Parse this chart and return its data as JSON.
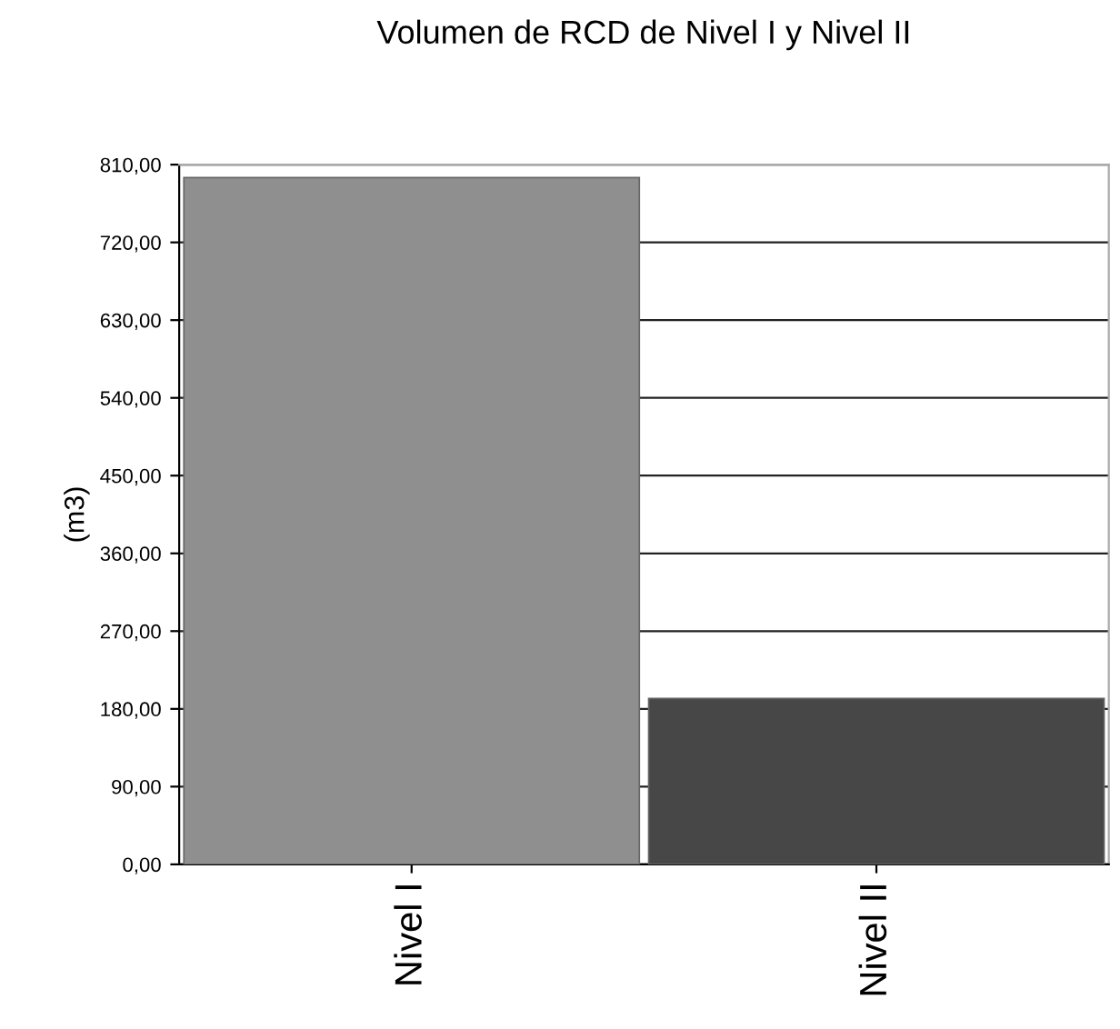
{
  "chart_data": {
    "type": "bar",
    "title": "Volumen de RCD de Nivel I y Nivel II",
    "ylabel": "(m3)",
    "categories": [
      "Nivel I",
      "Nivel II"
    ],
    "values": [
      795,
      192
    ],
    "colors": [
      "#8f8f8f",
      "#474747"
    ],
    "ylim": [
      0,
      810
    ],
    "yticks": [
      {
        "value": 0,
        "label": "0,00"
      },
      {
        "value": 90,
        "label": "90,00"
      },
      {
        "value": 180,
        "label": "180,00"
      },
      {
        "value": 270,
        "label": "270,00"
      },
      {
        "value": 360,
        "label": "360,00"
      },
      {
        "value": 450,
        "label": "450,00"
      },
      {
        "value": 540,
        "label": "540,00"
      },
      {
        "value": 630,
        "label": "630,00"
      },
      {
        "value": 720,
        "label": "720,00"
      },
      {
        "value": 810,
        "label": "810,00"
      }
    ],
    "grid": "y",
    "legend": false
  }
}
